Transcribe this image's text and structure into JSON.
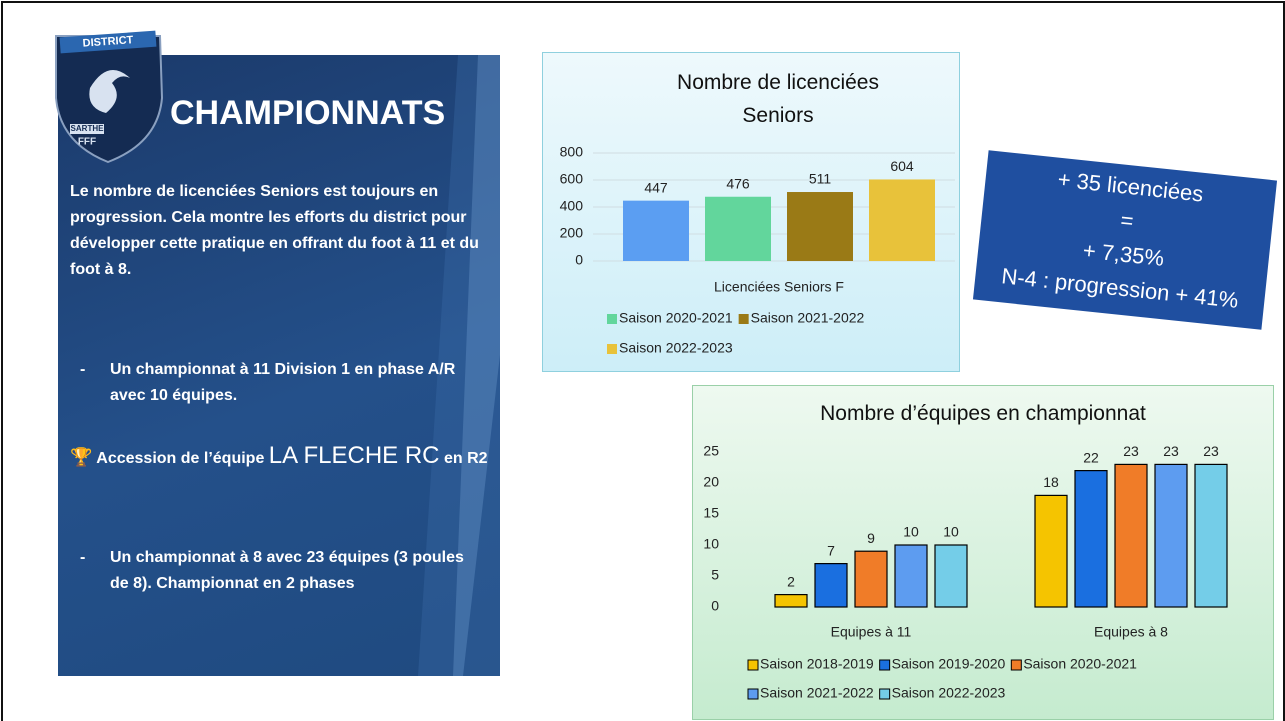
{
  "slide": {
    "logo": {
      "top": "DISTRICT",
      "middle": "SARTHE",
      "bottom": "FFF"
    },
    "heading": "CHAMPIONNATS",
    "intro": "Le nombre de licenciées Seniors est toujours en progression. Cela montre les efforts du district pour développer cette pratique en offrant du foot à 11 et du foot à 8.",
    "bullets": [
      {
        "marker": "-",
        "text": "Un championnat à 11 Division 1 en phase A/R avec 10 équipes."
      },
      {
        "marker": "-",
        "text": "Un championnat à 8 avec 23 équipes (3 poules de 8). Championnat en 2 phases"
      }
    ],
    "accession": {
      "text": "Accession de l’équipe",
      "team": "LA FLECHE RC",
      "suffix": "en R2"
    },
    "callout": [
      "+ 35 licenciées",
      "=",
      "+ 7,35%",
      "N-4 : progression + 41%"
    ]
  },
  "chart_data": [
    {
      "type": "bar",
      "title": "Nombre de licenciées Seniors",
      "categories": [
        "Licenciées Seniors F"
      ],
      "series": [
        {
          "color": "#5b9ef2",
          "values": [
            447
          ]
        },
        {
          "name": "Saison 2020-2021",
          "color": "#62d69c",
          "values": [
            476
          ]
        },
        {
          "name": "Saison 2021-2022",
          "color": "#9a7a16",
          "values": [
            511
          ]
        },
        {
          "name": "Saison 2022-2023",
          "color": "#e8c23a",
          "values": [
            604
          ]
        }
      ],
      "ylim": [
        0,
        800
      ],
      "yticks": [
        0,
        200,
        400,
        600,
        800
      ],
      "grid": true
    },
    {
      "type": "bar",
      "title": "Nombre d’équipes en championnat",
      "categories": [
        "Equipes à 11",
        "Equipes à 8"
      ],
      "series": [
        {
          "name": "Saison 2018-2019",
          "color": "#f5c400",
          "values": [
            2,
            18
          ]
        },
        {
          "name": "Saison 2019-2020",
          "color": "#1a6fe0",
          "values": [
            7,
            22
          ]
        },
        {
          "name": "Saison 2020-2021",
          "color": "#f07c28",
          "values": [
            9,
            23
          ]
        },
        {
          "name": "Saison 2021-2022",
          "color": "#5d9cf0",
          "values": [
            10,
            23
          ]
        },
        {
          "name": "Saison 2022-2023",
          "color": "#74cde8",
          "values": [
            10,
            23
          ]
        }
      ],
      "ylim": [
        0,
        25
      ],
      "yticks": [
        0,
        5,
        10,
        15,
        20,
        25
      ],
      "grid": false,
      "edgecolor": "#000000"
    }
  ]
}
